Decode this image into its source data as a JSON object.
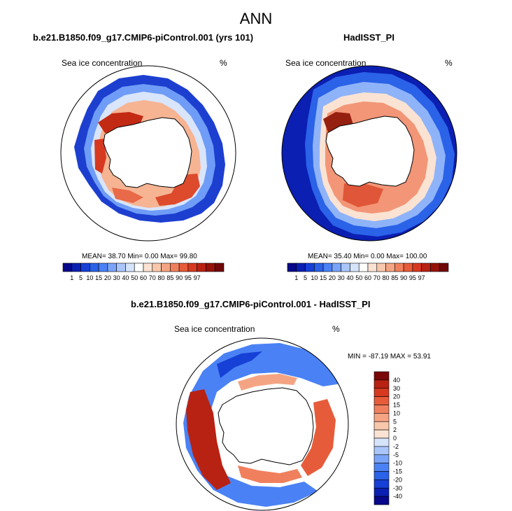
{
  "title": "ANN",
  "colors": {
    "abs": [
      "#08088a",
      "#0b1fb3",
      "#1640d6",
      "#2a62e8",
      "#4a82f5",
      "#7aa4f8",
      "#a9c5fa",
      "#d6e4fb",
      "#ffffff",
      "#fbe3d3",
      "#f8c7ac",
      "#f5a483",
      "#f0805d",
      "#e65c3a",
      "#d6391f",
      "#b82212",
      "#961208",
      "#700808"
    ],
    "diff": [
      "#08088a",
      "#0b1fb3",
      "#1640d6",
      "#2a62e8",
      "#4a82f5",
      "#7aa4f8",
      "#a9c5fa",
      "#d6e4fb",
      "#fbe3d3",
      "#f8c7ac",
      "#f5a483",
      "#f0805d",
      "#e65c3a",
      "#d6391f",
      "#b82212",
      "#7a0808"
    ],
    "land": "#ffffff",
    "coast": "#000000"
  },
  "chart_data": [
    {
      "type": "heatmap",
      "title": "b.e21.B1850.f09_g17.CMIP6-piControl.001 (yrs 101)",
      "variable": "Sea ice concentration",
      "units": "%",
      "stats": {
        "mean": "38.70",
        "min": "0.00",
        "max": "99.80"
      },
      "stats_text": "MEAN=  38.70  Min=   0.00  Max=  99.80",
      "levels": [
        "1",
        "5",
        "10",
        "15",
        "20",
        "30",
        "40",
        "50",
        "60",
        "70",
        "80",
        "85",
        "90",
        "95",
        "97"
      ]
    },
    {
      "type": "heatmap",
      "title": "HadISST_PI",
      "variable": "Sea ice concentration",
      "units": "%",
      "stats": {
        "mean": "35.40",
        "min": "0.00",
        "max": "100.00"
      },
      "stats_text": "MEAN=  35.40  Min=   0.00  Max= 100.00",
      "levels": [
        "1",
        "5",
        "10",
        "15",
        "20",
        "30",
        "40",
        "50",
        "60",
        "70",
        "80",
        "85",
        "90",
        "95",
        "97"
      ]
    },
    {
      "type": "heatmap",
      "title": "b.e21.B1850.f09_g17.CMIP6-piControl.001 - HadISST_PI",
      "variable": "Sea ice concentration",
      "units": "%",
      "stats": {
        "min": "-87.19",
        "max": "53.91"
      },
      "stats_text": "MIN = -87.19 MAX =  53.91",
      "levels": [
        "40",
        "30",
        "20",
        "15",
        "10",
        "5",
        "2",
        "0",
        "-2",
        "-5",
        "-10",
        "-15",
        "-20",
        "-30",
        "-40"
      ]
    }
  ]
}
